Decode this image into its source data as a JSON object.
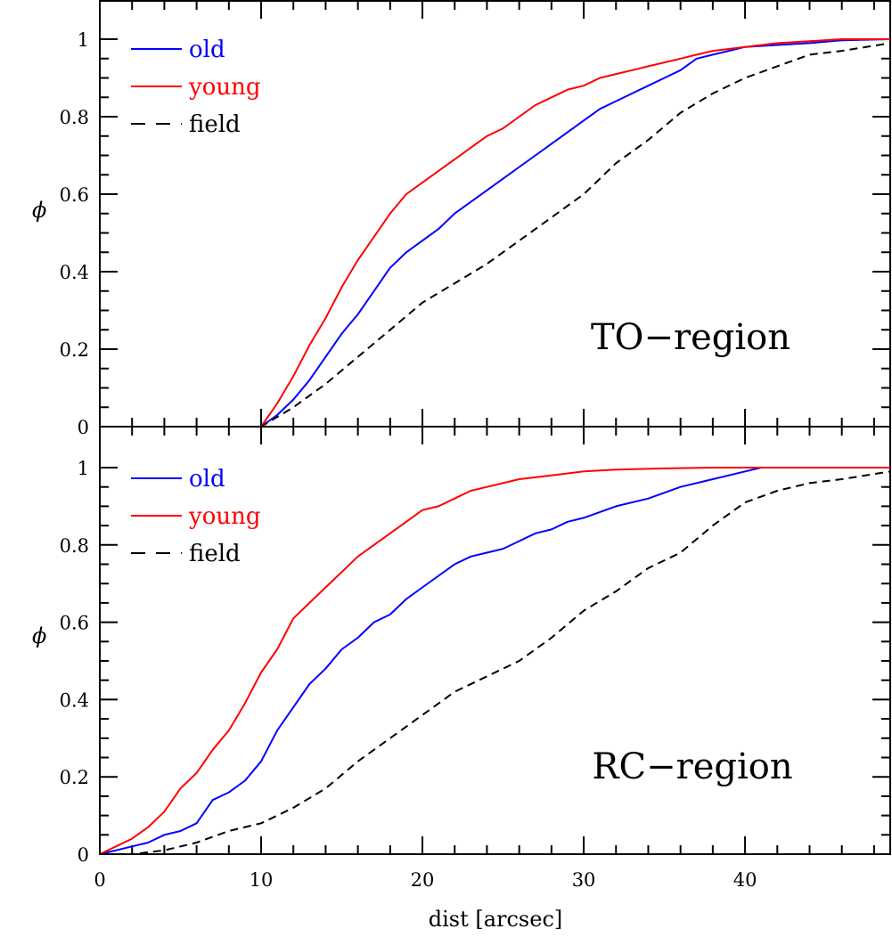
{
  "chart_data": [
    {
      "type": "line",
      "panel": "top",
      "annotation": "TO−region",
      "ylabel": "ϕ",
      "xlabel": "",
      "xlim": [
        0,
        49
      ],
      "ylim": [
        0,
        1.1
      ],
      "xticks": [
        0,
        10,
        20,
        30,
        40
      ],
      "yticks": [
        0,
        0.2,
        0.4,
        0.6,
        0.8,
        1
      ],
      "ytick_labels": [
        "0",
        "0.2",
        "0.4",
        "0.6",
        "0.8",
        "1"
      ],
      "legend_position": "top-left",
      "series": [
        {
          "name": "old",
          "color": "#0000ff",
          "style": "solid",
          "x": [
            0,
            10,
            11,
            12,
            13,
            14,
            15,
            16,
            17,
            18,
            19,
            20,
            21,
            22,
            23,
            24,
            25,
            26,
            27,
            28,
            29,
            30,
            31,
            32,
            33,
            34,
            35,
            36,
            37,
            38,
            39,
            40,
            42,
            44,
            46,
            49
          ],
          "y": [
            0,
            0,
            0.03,
            0.07,
            0.12,
            0.18,
            0.24,
            0.29,
            0.35,
            0.41,
            0.45,
            0.48,
            0.51,
            0.55,
            0.58,
            0.61,
            0.64,
            0.67,
            0.7,
            0.73,
            0.76,
            0.79,
            0.82,
            0.84,
            0.86,
            0.88,
            0.9,
            0.92,
            0.95,
            0.96,
            0.97,
            0.98,
            0.985,
            0.99,
            0.997,
            1.0
          ]
        },
        {
          "name": "young",
          "color": "#ff0000",
          "style": "solid",
          "x": [
            0,
            10,
            11,
            12,
            13,
            14,
            15,
            16,
            17,
            18,
            19,
            20,
            21,
            22,
            23,
            24,
            25,
            26,
            27,
            28,
            29,
            30,
            31,
            32,
            33,
            34,
            35,
            36,
            37,
            38,
            40,
            42,
            44,
            46,
            49
          ],
          "y": [
            0,
            0,
            0.06,
            0.13,
            0.21,
            0.28,
            0.36,
            0.43,
            0.49,
            0.55,
            0.6,
            0.63,
            0.66,
            0.69,
            0.72,
            0.75,
            0.77,
            0.8,
            0.83,
            0.85,
            0.87,
            0.88,
            0.9,
            0.91,
            0.92,
            0.93,
            0.94,
            0.95,
            0.96,
            0.97,
            0.98,
            0.99,
            0.995,
            1.0,
            1.0
          ]
        },
        {
          "name": "field",
          "color": "#000000",
          "style": "dashed",
          "x": [
            0,
            10,
            12,
            14,
            16,
            18,
            20,
            22,
            24,
            26,
            28,
            30,
            32,
            34,
            36,
            38,
            40,
            42,
            44,
            46,
            49
          ],
          "y": [
            0,
            0,
            0.05,
            0.11,
            0.18,
            0.25,
            0.32,
            0.37,
            0.42,
            0.48,
            0.54,
            0.6,
            0.68,
            0.74,
            0.81,
            0.86,
            0.9,
            0.93,
            0.96,
            0.97,
            0.99
          ]
        }
      ]
    },
    {
      "type": "line",
      "panel": "bottom",
      "annotation": "RC−region",
      "ylabel": "ϕ",
      "xlabel": "dist [arcsec]",
      "xlim": [
        0,
        49
      ],
      "ylim": [
        0,
        1.1
      ],
      "xticks": [
        0,
        10,
        20,
        30,
        40
      ],
      "xtick_labels": [
        "0",
        "10",
        "20",
        "30",
        "40"
      ],
      "yticks": [
        0,
        0.2,
        0.4,
        0.6,
        0.8,
        1
      ],
      "ytick_labels": [
        "0",
        "0.2",
        "0.4",
        "0.6",
        "0.8",
        "1"
      ],
      "legend_position": "top-left",
      "series": [
        {
          "name": "old",
          "color": "#0000ff",
          "style": "solid",
          "x": [
            0,
            1,
            2,
            3,
            4,
            5,
            6,
            7,
            8,
            9,
            10,
            11,
            12,
            13,
            14,
            15,
            16,
            17,
            18,
            19,
            20,
            21,
            22,
            23,
            24,
            25,
            26,
            27,
            28,
            29,
            30,
            32,
            34,
            36,
            38,
            40,
            41,
            49
          ],
          "y": [
            0,
            0.01,
            0.02,
            0.03,
            0.05,
            0.06,
            0.08,
            0.14,
            0.16,
            0.19,
            0.24,
            0.32,
            0.38,
            0.44,
            0.48,
            0.53,
            0.56,
            0.6,
            0.62,
            0.66,
            0.69,
            0.72,
            0.75,
            0.77,
            0.78,
            0.79,
            0.81,
            0.83,
            0.84,
            0.86,
            0.87,
            0.9,
            0.92,
            0.95,
            0.97,
            0.99,
            1.0,
            1.0
          ]
        },
        {
          "name": "young",
          "color": "#ff0000",
          "style": "solid",
          "x": [
            0,
            1,
            2,
            3,
            4,
            5,
            6,
            7,
            8,
            9,
            10,
            11,
            12,
            13,
            14,
            15,
            16,
            17,
            18,
            19,
            20,
            21,
            22,
            23,
            24,
            26,
            28,
            30,
            32,
            35,
            38,
            40,
            49
          ],
          "y": [
            0,
            0.02,
            0.04,
            0.07,
            0.11,
            0.17,
            0.21,
            0.27,
            0.32,
            0.39,
            0.47,
            0.53,
            0.61,
            0.65,
            0.69,
            0.73,
            0.77,
            0.8,
            0.83,
            0.86,
            0.89,
            0.9,
            0.92,
            0.94,
            0.95,
            0.97,
            0.98,
            0.99,
            0.995,
            0.998,
            1.0,
            1.0,
            1.0
          ]
        },
        {
          "name": "field",
          "color": "#000000",
          "style": "dashed",
          "x": [
            0,
            2,
            4,
            6,
            8,
            10,
            12,
            14,
            16,
            18,
            20,
            22,
            24,
            26,
            28,
            30,
            32,
            34,
            36,
            38,
            40,
            42,
            44,
            46,
            49
          ],
          "y": [
            0,
            0,
            0.01,
            0.03,
            0.06,
            0.08,
            0.12,
            0.17,
            0.24,
            0.3,
            0.36,
            0.42,
            0.46,
            0.5,
            0.56,
            0.63,
            0.68,
            0.74,
            0.78,
            0.85,
            0.91,
            0.94,
            0.96,
            0.97,
            0.99
          ]
        }
      ]
    }
  ]
}
